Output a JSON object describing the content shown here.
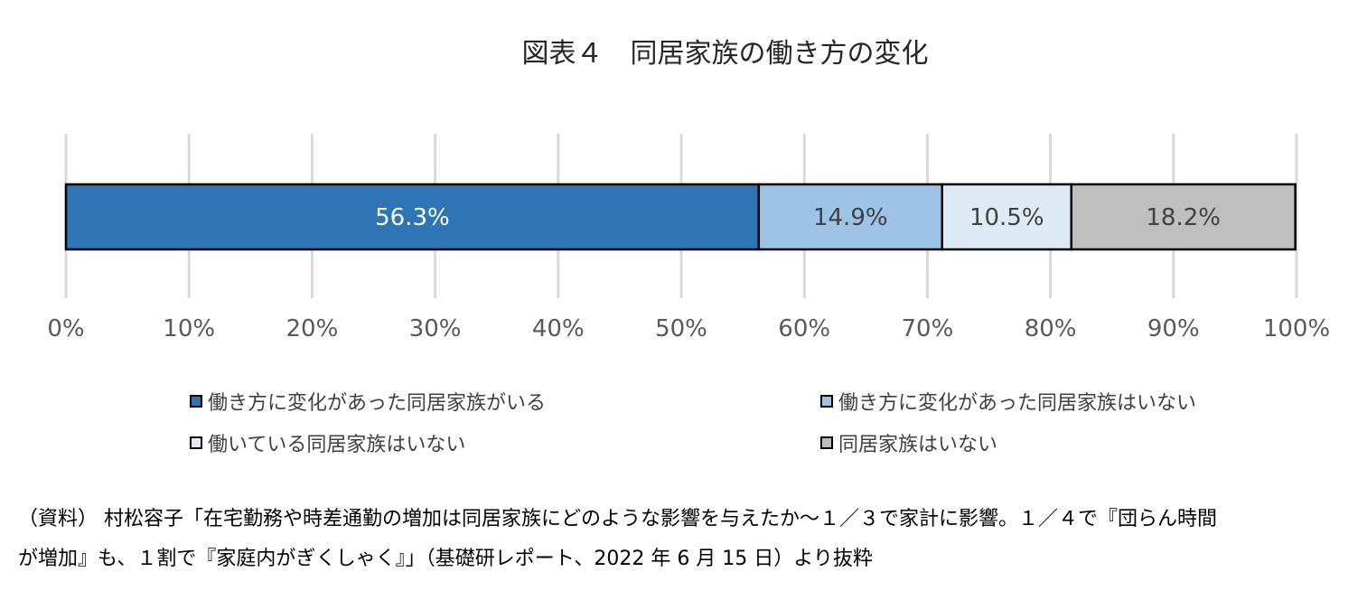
{
  "chart_data": {
    "type": "bar",
    "orientation": "horizontal",
    "stacked": true,
    "title": "図表４　同居家族の働き方の変化",
    "categories": [
      ""
    ],
    "series": [
      {
        "name": "働き方に変化があった同居家族がいる",
        "values": [
          56.3
        ],
        "label": "56.3%",
        "color": "#2E75B6",
        "label_color": "#ffffff"
      },
      {
        "name": "働き方に変化があった同居家族はいない",
        "values": [
          14.9
        ],
        "label": "14.9%",
        "color": "#9DC3E6",
        "label_color": "#404040"
      },
      {
        "name": "働いている同居家族はいない",
        "values": [
          10.5
        ],
        "label": "10.5%",
        "color": "#DEEBF7",
        "label_color": "#404040"
      },
      {
        "name": "同居家族はいない",
        "values": [
          18.2
        ],
        "label": "18.2%",
        "color": "#BFBFBF",
        "label_color": "#404040"
      }
    ],
    "xlim": [
      0,
      100
    ],
    "xticks": [
      "0%",
      "10%",
      "20%",
      "30%",
      "40%",
      "50%",
      "60%",
      "70%",
      "80%",
      "90%",
      "100%"
    ],
    "grid": true,
    "legend_position": "bottom"
  },
  "source": {
    "line1": "（資料） 村松容子「在宅勤務や時差通勤の増加は同居家族にどのような影響を与えたか～１／３で家計に影響。１／４で『団らん時間",
    "line2": "が増加』も、１割で『家庭内がぎくしゃく』」（基礎研レポート、2022 年 6 月 15 日）より抜粋"
  }
}
